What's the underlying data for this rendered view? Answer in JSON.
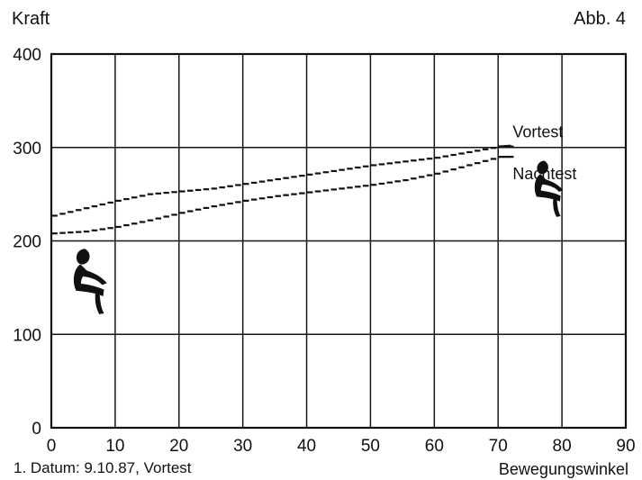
{
  "header": {
    "figure_label": "Abb. 4",
    "y_axis_title": "Kraft"
  },
  "footer": {
    "caption": "1. Datum: 9.10.87, Vortest",
    "x_axis_title": "Bewegungswinkel"
  },
  "chart_data": {
    "type": "line",
    "title": "",
    "xlabel": "Bewegungswinkel",
    "ylabel": "Kraft",
    "xlim": [
      0,
      90
    ],
    "ylim": [
      0,
      400
    ],
    "x_ticks": [
      0,
      10,
      20,
      30,
      40,
      50,
      60,
      70,
      80,
      90
    ],
    "y_ticks": [
      0,
      100,
      200,
      300,
      400
    ],
    "grid": true,
    "series": [
      {
        "name": "Vortest",
        "color": "#111111",
        "style": "dashed-step",
        "x": [
          0,
          5,
          10,
          15,
          20,
          25,
          30,
          35,
          40,
          45,
          50,
          55,
          60,
          65,
          70
        ],
        "values": [
          227,
          235,
          243,
          250,
          253,
          256,
          261,
          266,
          271,
          276,
          281,
          285,
          289,
          295,
          301
        ]
      },
      {
        "name": "Nachtest",
        "color": "#111111",
        "style": "dashed-step",
        "x": [
          0,
          5,
          10,
          15,
          20,
          25,
          30,
          35,
          40,
          45,
          50,
          55,
          60,
          65,
          70
        ],
        "values": [
          208,
          210,
          215,
          222,
          230,
          237,
          243,
          248,
          252,
          256,
          260,
          265,
          272,
          281,
          290
        ]
      }
    ],
    "icons": [
      {
        "name": "seated-figure-start-icon",
        "x": 5,
        "y": 165
      },
      {
        "name": "seated-figure-end-icon",
        "x": 77,
        "y": 263
      }
    ]
  }
}
